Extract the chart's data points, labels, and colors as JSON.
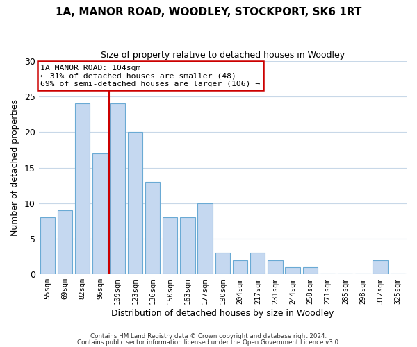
{
  "title": "1A, MANOR ROAD, WOODLEY, STOCKPORT, SK6 1RT",
  "subtitle": "Size of property relative to detached houses in Woodley",
  "xlabel": "Distribution of detached houses by size in Woodley",
  "ylabel": "Number of detached properties",
  "categories": [
    "55sqm",
    "69sqm",
    "82sqm",
    "96sqm",
    "109sqm",
    "123sqm",
    "136sqm",
    "150sqm",
    "163sqm",
    "177sqm",
    "190sqm",
    "204sqm",
    "217sqm",
    "231sqm",
    "244sqm",
    "258sqm",
    "271sqm",
    "285sqm",
    "298sqm",
    "312sqm",
    "325sqm"
  ],
  "values": [
    8,
    9,
    24,
    17,
    24,
    20,
    13,
    8,
    8,
    10,
    3,
    2,
    3,
    2,
    1,
    1,
    0,
    0,
    0,
    2,
    0
  ],
  "bar_color": "#c5d8f0",
  "bar_edge_color": "#6aaad4",
  "vline_color": "#cc0000",
  "annotation_box_edge_color": "#cc0000",
  "annotation_box_face_color": "#ffffff",
  "ylim": [
    0,
    30
  ],
  "yticks": [
    0,
    5,
    10,
    15,
    20,
    25,
    30
  ],
  "reference_line_label": "1A MANOR ROAD: 104sqm",
  "annotation_line1": "← 31% of detached houses are smaller (48)",
  "annotation_line2": "69% of semi-detached houses are larger (106) →",
  "footer1": "Contains HM Land Registry data © Crown copyright and database right 2024.",
  "footer2": "Contains public sector information licensed under the Open Government Licence v3.0.",
  "background_color": "#ffffff",
  "grid_color": "#c8d8e8"
}
